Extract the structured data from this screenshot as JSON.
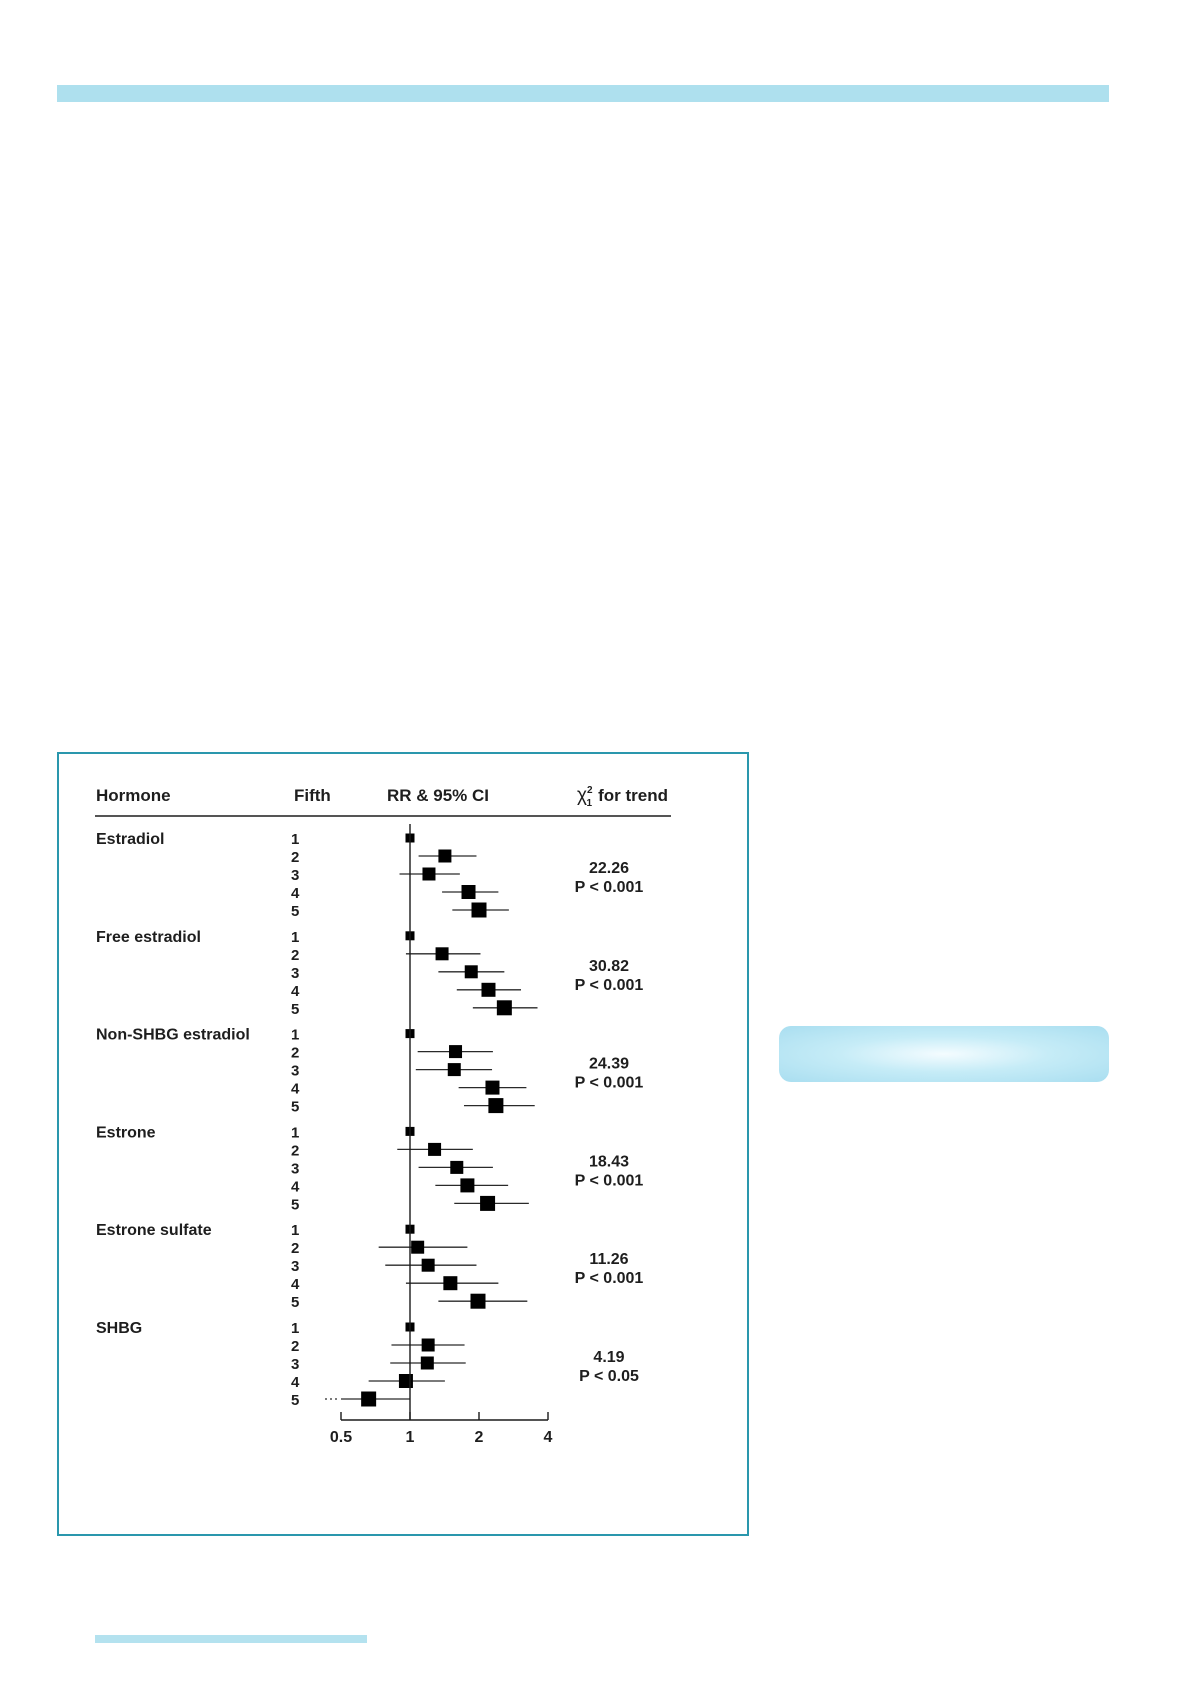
{
  "page": {
    "accent_color": "#aee0ee",
    "frame_color": "#2a97ad"
  },
  "chart_data": {
    "type": "forest",
    "headers": {
      "hormone": "Hormone",
      "fifth": "Fifth",
      "rr": "RR & 95% CI",
      "trend_chi": "χ",
      "trend_sup": "2",
      "trend_sub": "1",
      "trend_tail": "for trend"
    },
    "x_axis": {
      "scale": "log",
      "ticks": [
        0.5,
        1,
        2,
        4
      ],
      "tick_labels": [
        "0.5",
        "1",
        "2",
        "4"
      ],
      "range": [
        0.5,
        4
      ]
    },
    "groups": [
      {
        "name": "Estradiol",
        "trend": "22.26",
        "p": "P < 0.001",
        "rows": [
          {
            "fifth": "1",
            "rr": 1.0,
            "lo": null,
            "hi": null
          },
          {
            "fifth": "2",
            "rr": 1.42,
            "lo": 1.09,
            "hi": 1.95
          },
          {
            "fifth": "3",
            "rr": 1.21,
            "lo": 0.9,
            "hi": 1.65
          },
          {
            "fifth": "4",
            "rr": 1.8,
            "lo": 1.38,
            "hi": 2.43
          },
          {
            "fifth": "5",
            "rr": 2.0,
            "lo": 1.53,
            "hi": 2.7
          }
        ]
      },
      {
        "name": "Free estradiol",
        "trend": "30.82",
        "p": "P < 0.001",
        "rows": [
          {
            "fifth": "1",
            "rr": 1.0,
            "lo": null,
            "hi": null
          },
          {
            "fifth": "2",
            "rr": 1.38,
            "lo": 0.96,
            "hi": 2.03
          },
          {
            "fifth": "3",
            "rr": 1.85,
            "lo": 1.33,
            "hi": 2.58
          },
          {
            "fifth": "4",
            "rr": 2.2,
            "lo": 1.6,
            "hi": 3.05
          },
          {
            "fifth": "5",
            "rr": 2.58,
            "lo": 1.88,
            "hi": 3.6
          }
        ]
      },
      {
        "name": "Non-SHBG estradiol",
        "trend": "24.39",
        "p": "P < 0.001",
        "rows": [
          {
            "fifth": "1",
            "rr": 1.0,
            "lo": null,
            "hi": null
          },
          {
            "fifth": "2",
            "rr": 1.58,
            "lo": 1.08,
            "hi": 2.3
          },
          {
            "fifth": "3",
            "rr": 1.56,
            "lo": 1.06,
            "hi": 2.28
          },
          {
            "fifth": "4",
            "rr": 2.29,
            "lo": 1.63,
            "hi": 3.22
          },
          {
            "fifth": "5",
            "rr": 2.37,
            "lo": 1.72,
            "hi": 3.5
          }
        ]
      },
      {
        "name": "Estrone",
        "trend": "18.43",
        "p": "P < 0.001",
        "rows": [
          {
            "fifth": "1",
            "rr": 1.0,
            "lo": null,
            "hi": null
          },
          {
            "fifth": "2",
            "rr": 1.28,
            "lo": 0.88,
            "hi": 1.88
          },
          {
            "fifth": "3",
            "rr": 1.6,
            "lo": 1.09,
            "hi": 2.3
          },
          {
            "fifth": "4",
            "rr": 1.78,
            "lo": 1.29,
            "hi": 2.68
          },
          {
            "fifth": "5",
            "rr": 2.18,
            "lo": 1.56,
            "hi": 3.3
          }
        ]
      },
      {
        "name": "Estrone sulfate",
        "trend": "11.26",
        "p": "P < 0.001",
        "rows": [
          {
            "fifth": "1",
            "rr": 1.0,
            "lo": null,
            "hi": null
          },
          {
            "fifth": "2",
            "rr": 1.08,
            "lo": 0.73,
            "hi": 1.78
          },
          {
            "fifth": "3",
            "rr": 1.2,
            "lo": 0.78,
            "hi": 1.95
          },
          {
            "fifth": "4",
            "rr": 1.5,
            "lo": 0.96,
            "hi": 2.43
          },
          {
            "fifth": "5",
            "rr": 1.98,
            "lo": 1.33,
            "hi": 3.25
          }
        ]
      },
      {
        "name": "SHBG",
        "trend": "4.19",
        "p": "P < 0.05",
        "rows": [
          {
            "fifth": "1",
            "rr": 1.0,
            "lo": null,
            "hi": null
          },
          {
            "fifth": "2",
            "rr": 1.2,
            "lo": 0.83,
            "hi": 1.73
          },
          {
            "fifth": "3",
            "rr": 1.19,
            "lo": 0.82,
            "hi": 1.75
          },
          {
            "fifth": "4",
            "rr": 0.96,
            "lo": 0.66,
            "hi": 1.42
          },
          {
            "fifth": "5",
            "rr": 0.66,
            "lo": 0.5,
            "hi": 1.0,
            "lo_truncated": true
          }
        ]
      }
    ]
  }
}
